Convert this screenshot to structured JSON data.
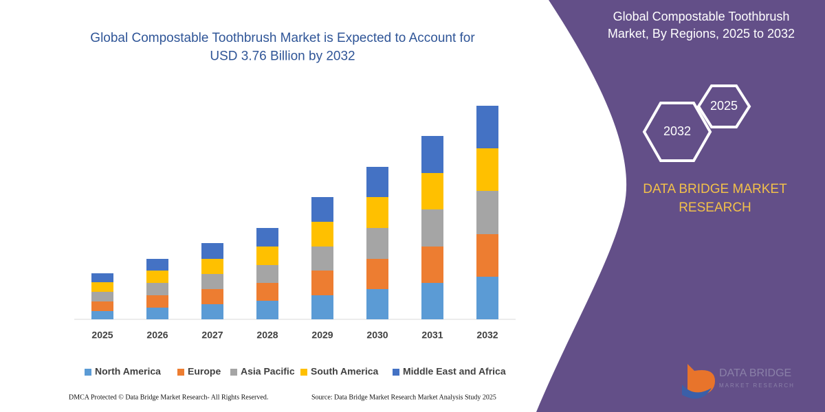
{
  "chart_data": {
    "type": "stacked-bar",
    "title": "Global Compostable Toothbrush Market is Expected to Account for USD 3.76 Billion by 2032",
    "x": [
      2025,
      2026,
      2027,
      2028,
      2029,
      2030,
      2031,
      2032
    ],
    "ylim": [
      0,
      320
    ],
    "series": [
      {
        "name": "North America",
        "color": "#5b9bd5",
        "values": [
          12,
          17,
          22,
          27,
          35,
          44,
          53,
          62
        ]
      },
      {
        "name": "Europe",
        "color": "#ed7d31",
        "values": [
          14,
          18,
          22,
          26,
          36,
          44,
          53,
          62
        ]
      },
      {
        "name": "Asia Pacific",
        "color": "#a5a5a5",
        "values": [
          14,
          18,
          22,
          26,
          35,
          45,
          54,
          63
        ]
      },
      {
        "name": "South America",
        "color": "#ffc000",
        "values": [
          14,
          18,
          22,
          27,
          36,
          45,
          53,
          62
        ]
      },
      {
        "name": "Middle East and Africa",
        "color": "#4472c4",
        "values": [
          13,
          17,
          23,
          27,
          36,
          44,
          54,
          62
        ]
      }
    ]
  },
  "panel": {
    "title": "Global Compostable Toothbrush Market, By Regions, 2025 to 2032",
    "hex_large": "2032",
    "hex_small": "2025",
    "brand": [
      "DATA BRIDGE MARKET",
      "RESEARCH"
    ],
    "logo": [
      "DATA BRIDGE",
      "MARKET RESEARCH"
    ]
  },
  "footer": {
    "left": "DMCA Protected © Data Bridge Market Research-  All Rights Reserved.",
    "right": "Source: Data Bridge Market Research  Market Analysis Study 2025"
  }
}
